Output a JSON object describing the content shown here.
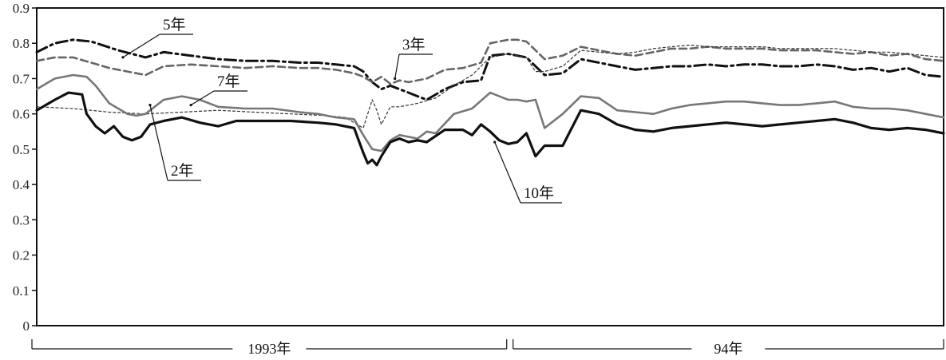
{
  "chart_data": {
    "type": "line",
    "title": "",
    "xlabel": "",
    "ylabel": "",
    "ylim": [
      0,
      0.9
    ],
    "yticks": [
      "0",
      "0.1",
      "0.2",
      "0.3",
      "0.4",
      "0.5",
      "0.6",
      "0.7",
      "0.8",
      "0.9"
    ],
    "x_periods": [
      {
        "label": "1993年",
        "start": 0,
        "end": 0.52
      },
      {
        "label": "94年",
        "start": 0.52,
        "end": 1.0
      }
    ],
    "xlim": [
      0,
      1
    ],
    "grid": false,
    "legend": "callouts",
    "series": [
      {
        "name": "5年",
        "style": "dashdot",
        "color": "#111111",
        "x": [
          0,
          0.02,
          0.04,
          0.06,
          0.09,
          0.12,
          0.14,
          0.17,
          0.2,
          0.23,
          0.26,
          0.29,
          0.31,
          0.33,
          0.35,
          0.36,
          0.37,
          0.38,
          0.39,
          0.4,
          0.41,
          0.42,
          0.43,
          0.45,
          0.47,
          0.49,
          0.5,
          0.52,
          0.53,
          0.54,
          0.56,
          0.58,
          0.6,
          0.62,
          0.64,
          0.66,
          0.68,
          0.7,
          0.72,
          0.74,
          0.76,
          0.78,
          0.8,
          0.82,
          0.84,
          0.86,
          0.88,
          0.9,
          0.92,
          0.94,
          0.96,
          0.98,
          1.0
        ],
        "y": [
          0.775,
          0.8,
          0.81,
          0.805,
          0.78,
          0.76,
          0.775,
          0.765,
          0.755,
          0.75,
          0.75,
          0.745,
          0.745,
          0.74,
          0.735,
          0.72,
          0.69,
          0.67,
          0.68,
          0.67,
          0.66,
          0.65,
          0.64,
          0.67,
          0.69,
          0.695,
          0.765,
          0.77,
          0.765,
          0.76,
          0.71,
          0.715,
          0.755,
          0.745,
          0.735,
          0.725,
          0.73,
          0.735,
          0.735,
          0.74,
          0.735,
          0.74,
          0.74,
          0.735,
          0.735,
          0.74,
          0.735,
          0.725,
          0.73,
          0.72,
          0.73,
          0.71,
          0.705
        ]
      },
      {
        "name": "3年",
        "style": "dashed",
        "color": "#666666",
        "x": [
          0,
          0.02,
          0.04,
          0.06,
          0.08,
          0.1,
          0.12,
          0.14,
          0.17,
          0.2,
          0.23,
          0.26,
          0.29,
          0.31,
          0.33,
          0.35,
          0.36,
          0.37,
          0.38,
          0.39,
          0.4,
          0.41,
          0.43,
          0.45,
          0.47,
          0.49,
          0.5,
          0.52,
          0.53,
          0.54,
          0.56,
          0.58,
          0.6,
          0.62,
          0.64,
          0.66,
          0.68,
          0.7,
          0.72,
          0.74,
          0.76,
          0.78,
          0.8,
          0.82,
          0.84,
          0.86,
          0.88,
          0.9,
          0.92,
          0.94,
          0.96,
          0.98,
          1.0
        ],
        "y": [
          0.75,
          0.76,
          0.76,
          0.745,
          0.73,
          0.72,
          0.71,
          0.735,
          0.74,
          0.735,
          0.73,
          0.735,
          0.73,
          0.73,
          0.725,
          0.715,
          0.705,
          0.69,
          0.705,
          0.685,
          0.695,
          0.69,
          0.7,
          0.725,
          0.73,
          0.745,
          0.8,
          0.81,
          0.81,
          0.805,
          0.755,
          0.765,
          0.79,
          0.78,
          0.77,
          0.765,
          0.775,
          0.785,
          0.785,
          0.79,
          0.785,
          0.785,
          0.785,
          0.78,
          0.78,
          0.78,
          0.775,
          0.77,
          0.775,
          0.765,
          0.77,
          0.755,
          0.75
        ]
      },
      {
        "name": "",
        "style": "dotted-thin",
        "color": "#333333",
        "x": [
          0,
          0.04,
          0.08,
          0.12,
          0.16,
          0.2,
          0.24,
          0.28,
          0.32,
          0.34,
          0.35,
          0.36,
          0.365,
          0.37,
          0.375,
          0.38,
          0.39,
          0.4,
          0.42,
          0.44,
          0.46,
          0.48,
          0.5,
          0.52,
          0.53,
          0.54,
          0.55,
          0.56,
          0.58,
          0.6,
          0.62,
          0.64,
          0.66,
          0.68,
          0.7,
          0.72,
          0.74,
          0.76,
          0.78,
          0.8,
          0.82,
          0.84,
          0.86,
          0.88,
          0.9,
          0.92,
          0.94,
          0.96,
          0.98,
          1.0
        ],
        "y": [
          0.62,
          0.615,
          0.605,
          0.6,
          0.605,
          0.61,
          0.605,
          0.6,
          0.595,
          0.59,
          0.575,
          0.56,
          0.6,
          0.64,
          0.61,
          0.57,
          0.62,
          0.62,
          0.63,
          0.645,
          0.68,
          0.71,
          0.76,
          0.77,
          0.765,
          0.76,
          0.72,
          0.72,
          0.735,
          0.78,
          0.775,
          0.77,
          0.775,
          0.785,
          0.79,
          0.795,
          0.79,
          0.79,
          0.79,
          0.79,
          0.785,
          0.785,
          0.785,
          0.785,
          0.78,
          0.775,
          0.775,
          0.77,
          0.765,
          0.76
        ]
      },
      {
        "name": "7年",
        "style": "solid",
        "color": "#777777",
        "x": [
          0,
          0.02,
          0.04,
          0.055,
          0.065,
          0.08,
          0.1,
          0.11,
          0.12,
          0.14,
          0.16,
          0.18,
          0.2,
          0.23,
          0.26,
          0.29,
          0.31,
          0.33,
          0.35,
          0.36,
          0.37,
          0.38,
          0.39,
          0.4,
          0.41,
          0.42,
          0.43,
          0.44,
          0.46,
          0.48,
          0.5,
          0.52,
          0.53,
          0.54,
          0.55,
          0.56,
          0.58,
          0.6,
          0.62,
          0.64,
          0.66,
          0.68,
          0.7,
          0.72,
          0.74,
          0.76,
          0.78,
          0.8,
          0.82,
          0.84,
          0.86,
          0.88,
          0.9,
          0.92,
          0.94,
          0.96,
          0.98,
          1.0
        ],
        "y": [
          0.67,
          0.7,
          0.71,
          0.705,
          0.68,
          0.63,
          0.6,
          0.595,
          0.6,
          0.64,
          0.65,
          0.64,
          0.62,
          0.615,
          0.615,
          0.605,
          0.6,
          0.59,
          0.585,
          0.54,
          0.5,
          0.495,
          0.525,
          0.54,
          0.535,
          0.53,
          0.55,
          0.545,
          0.6,
          0.615,
          0.66,
          0.64,
          0.64,
          0.635,
          0.64,
          0.56,
          0.6,
          0.65,
          0.645,
          0.61,
          0.605,
          0.6,
          0.615,
          0.625,
          0.63,
          0.635,
          0.635,
          0.63,
          0.625,
          0.625,
          0.63,
          0.635,
          0.62,
          0.615,
          0.615,
          0.61,
          0.6,
          0.59
        ]
      },
      {
        "name": "10年",
        "style": "solid-thick",
        "color": "#111111",
        "x": [
          0,
          0.02,
          0.035,
          0.05,
          0.055,
          0.065,
          0.075,
          0.085,
          0.095,
          0.105,
          0.115,
          0.125,
          0.14,
          0.16,
          0.18,
          0.2,
          0.22,
          0.25,
          0.28,
          0.31,
          0.33,
          0.35,
          0.36,
          0.365,
          0.37,
          0.375,
          0.38,
          0.39,
          0.4,
          0.41,
          0.42,
          0.43,
          0.45,
          0.47,
          0.48,
          0.49,
          0.5,
          0.51,
          0.52,
          0.53,
          0.54,
          0.55,
          0.56,
          0.57,
          0.58,
          0.59,
          0.6,
          0.62,
          0.64,
          0.66,
          0.68,
          0.7,
          0.72,
          0.74,
          0.76,
          0.78,
          0.8,
          0.82,
          0.84,
          0.86,
          0.88,
          0.9,
          0.92,
          0.94,
          0.96,
          0.98,
          1.0
        ],
        "y": [
          0.61,
          0.64,
          0.66,
          0.655,
          0.6,
          0.565,
          0.545,
          0.565,
          0.535,
          0.525,
          0.535,
          0.57,
          0.58,
          0.59,
          0.575,
          0.565,
          0.58,
          0.58,
          0.58,
          0.575,
          0.57,
          0.56,
          0.49,
          0.46,
          0.47,
          0.455,
          0.48,
          0.52,
          0.53,
          0.52,
          0.525,
          0.52,
          0.555,
          0.555,
          0.54,
          0.57,
          0.55,
          0.525,
          0.515,
          0.52,
          0.545,
          0.48,
          0.51,
          0.51,
          0.51,
          0.56,
          0.61,
          0.6,
          0.57,
          0.555,
          0.55,
          0.56,
          0.565,
          0.57,
          0.575,
          0.57,
          0.565,
          0.57,
          0.575,
          0.58,
          0.585,
          0.575,
          0.56,
          0.555,
          0.56,
          0.555,
          0.545
        ]
      },
      {
        "name": "2年",
        "style": "dotted",
        "color": "#555555",
        "x": [],
        "y": []
      }
    ],
    "callouts": [
      {
        "series": "5年",
        "label": "5年",
        "point_x": 0.095,
        "point_y": 0.76
      },
      {
        "series": "3年",
        "label": "3年",
        "point_x": 0.395,
        "point_y": 0.7
      },
      {
        "series": "7年",
        "label": "7年",
        "point_x": 0.17,
        "point_y": 0.625
      },
      {
        "series": "2年",
        "label": "2年",
        "point_x": 0.125,
        "point_y": 0.625
      },
      {
        "series": "10年",
        "label": "10年",
        "point_x": 0.505,
        "point_y": 0.52
      }
    ]
  }
}
